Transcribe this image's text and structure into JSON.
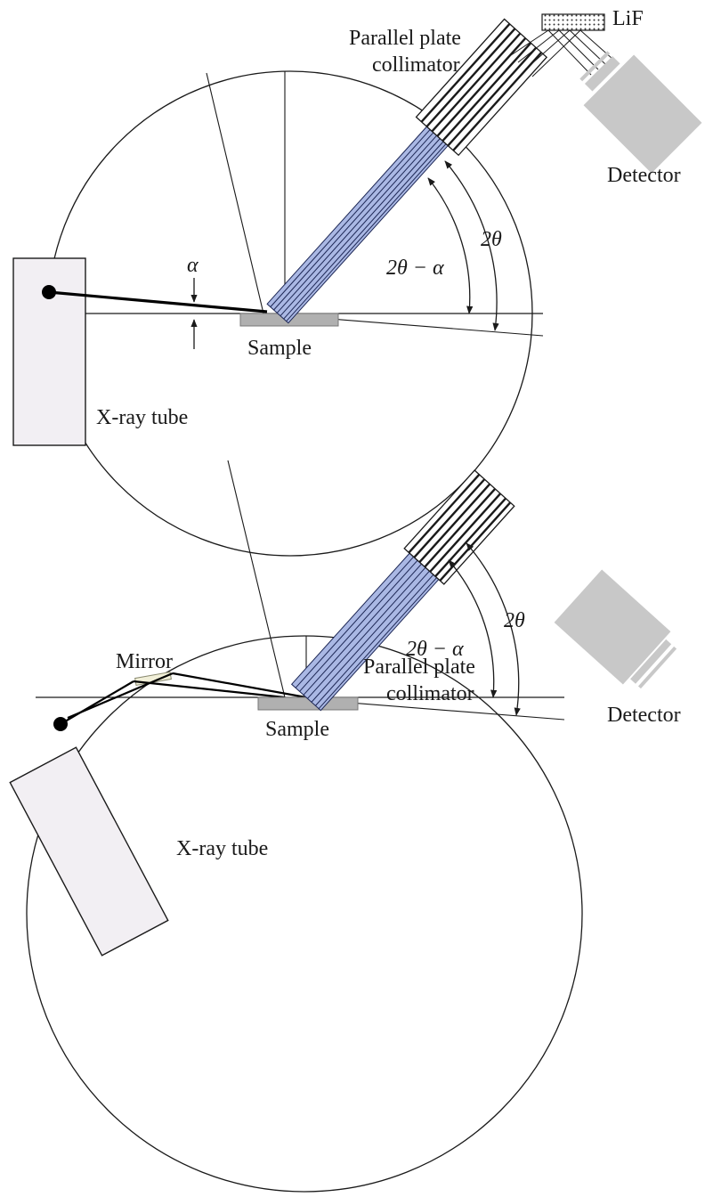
{
  "panels": [
    {
      "id": "top",
      "labels": {
        "collimator_line1": "Parallel plate",
        "collimator_line2": "collimator",
        "crystal": "LiF",
        "detector": "Detector",
        "sample": "Sample",
        "tube": "X-ray tube",
        "alpha": "α",
        "angle_inner": "2θ − α",
        "angle_outer": "2θ"
      }
    },
    {
      "id": "bottom",
      "labels": {
        "collimator_line1": "Parallel plate",
        "collimator_line2": "collimator",
        "detector": "Detector",
        "mirror": "Mirror",
        "sample": "Sample",
        "tube": "X-ray tube",
        "angle_inner": "2θ − α",
        "angle_outer": "2θ"
      }
    }
  ],
  "colors": {
    "beam_fill": "#aab8e4",
    "beam_lines": "#1d2755",
    "grey_body": "#c8c8c8",
    "tube_fill": "#f2eff3",
    "sample_fill": "#b0b0b0",
    "line": "#1a1a1a"
  }
}
